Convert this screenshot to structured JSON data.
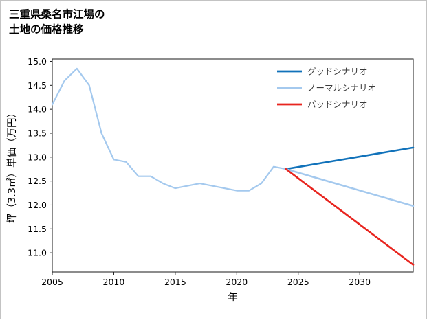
{
  "page": {
    "title_lines": [
      "三重県桑名市江場の",
      "土地の価格推移"
    ]
  },
  "chart_data": {
    "type": "line",
    "title": "三重県桑名市江場の土地の価格推移",
    "xlabel": "年",
    "ylabel": "坪（3.3㎡）単価（万円）",
    "xlim": [
      2005,
      2034.35
    ],
    "ylim": [
      10.6,
      15.05
    ],
    "xticks": [
      2005,
      2010,
      2015,
      2020,
      2025,
      2030
    ],
    "yticks": [
      11.0,
      11.5,
      12.0,
      12.5,
      13.0,
      13.5,
      14.0,
      14.5,
      15.0
    ],
    "grid": false,
    "legend_position": "upper-right",
    "series": [
      {
        "id": "history",
        "name": "",
        "in_legend": false,
        "color": "#a4c9ee",
        "width": 2.2,
        "x": [
          2005,
          2006,
          2007,
          2008,
          2009,
          2010,
          2011,
          2012,
          2013,
          2014,
          2015,
          2016,
          2017,
          2018,
          2019,
          2020,
          2021,
          2022,
          2023,
          2024
        ],
        "values": [
          14.1,
          14.6,
          14.85,
          14.5,
          13.5,
          12.95,
          12.9,
          12.6,
          12.6,
          12.45,
          12.35,
          12.4,
          12.45,
          12.4,
          12.35,
          12.3,
          12.3,
          12.45,
          12.8,
          12.75
        ]
      },
      {
        "id": "good",
        "name": "グッドシナリオ",
        "in_legend": true,
        "color": "#1172ba",
        "width": 2.6,
        "x": [
          2024,
          2034.35
        ],
        "values": [
          12.75,
          13.2
        ]
      },
      {
        "id": "normal",
        "name": "ノーマルシナリオ",
        "in_legend": true,
        "color": "#a4c9ee",
        "width": 2.6,
        "x": [
          2024,
          2034.35
        ],
        "values": [
          12.75,
          11.98
        ]
      },
      {
        "id": "bad",
        "name": "バッドシナリオ",
        "in_legend": true,
        "color": "#e8251f",
        "width": 2.6,
        "x": [
          2024,
          2034.35
        ],
        "values": [
          12.75,
          10.75
        ]
      }
    ]
  }
}
